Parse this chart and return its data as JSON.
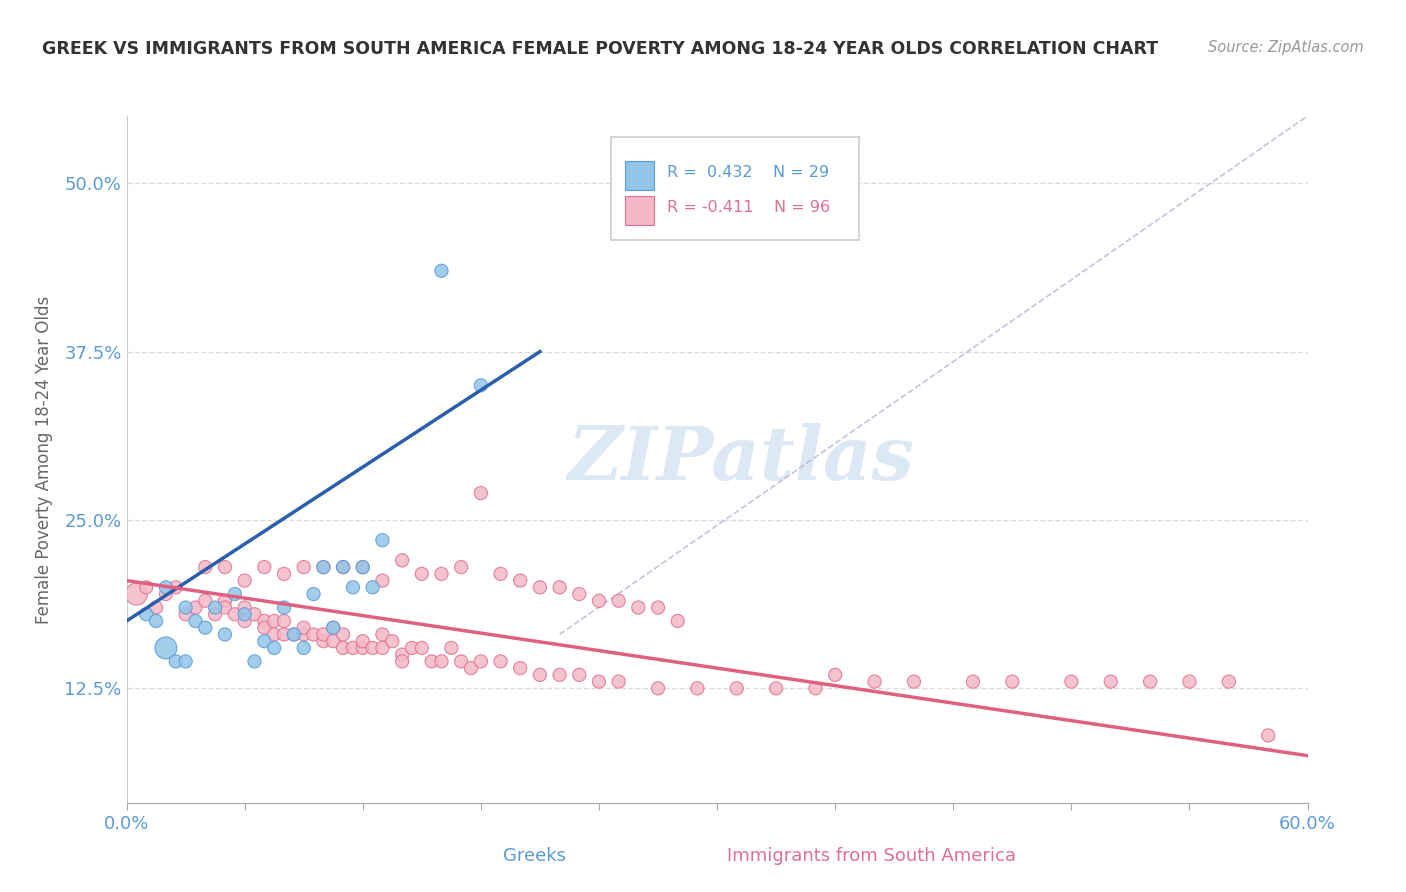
{
  "title": "GREEK VS IMMIGRANTS FROM SOUTH AMERICA FEMALE POVERTY AMONG 18-24 YEAR OLDS CORRELATION CHART",
  "source": "Source: ZipAtlas.com",
  "ylabel": "Female Poverty Among 18-24 Year Olds",
  "ytick_labels": [
    "12.5%",
    "25.0%",
    "37.5%",
    "50.0%"
  ],
  "ytick_values": [
    0.125,
    0.25,
    0.375,
    0.5
  ],
  "xlim": [
    0.0,
    0.6
  ],
  "ylim": [
    0.04,
    0.55
  ],
  "greek_R": 0.432,
  "greek_N": 29,
  "sa_R": -0.411,
  "sa_N": 96,
  "greek_color": "#92c5e8",
  "greek_edge": "#5b9bd5",
  "sa_color": "#f4b8c8",
  "sa_edge": "#e07090",
  "greek_line_color": "#2b5fad",
  "sa_line_color": "#e06080",
  "diag_color": "#aaaacc",
  "title_color": "#333333",
  "source_color": "#999999",
  "axis_label_color": "#666666",
  "tick_color": "#5b9bd5",
  "grid_color": "#dddddd",
  "watermark_color": "#dde8f5",
  "legend_border_color": "#cccccc",
  "legend_box_color": "white",
  "greek_label_color": "#5b9bd5",
  "sa_label_color": "#e07090",
  "greek_x": [
    0.02,
    0.03,
    0.035,
    0.04,
    0.045,
    0.05,
    0.055,
    0.06,
    0.065,
    0.07,
    0.075,
    0.08,
    0.085,
    0.09,
    0.095,
    0.1,
    0.105,
    0.11,
    0.115,
    0.12,
    0.125,
    0.13,
    0.01,
    0.015,
    0.02,
    0.025,
    0.03,
    0.16,
    0.18
  ],
  "greek_y": [
    0.2,
    0.185,
    0.175,
    0.17,
    0.185,
    0.165,
    0.195,
    0.18,
    0.145,
    0.16,
    0.155,
    0.185,
    0.165,
    0.155,
    0.195,
    0.215,
    0.17,
    0.215,
    0.2,
    0.215,
    0.2,
    0.235,
    0.18,
    0.175,
    0.155,
    0.145,
    0.145,
    0.435,
    0.35
  ],
  "greek_sizes": [
    90,
    90,
    90,
    90,
    90,
    90,
    90,
    90,
    90,
    90,
    90,
    90,
    90,
    90,
    90,
    90,
    90,
    90,
    90,
    90,
    90,
    90,
    90,
    90,
    250,
    90,
    90,
    90,
    90
  ],
  "sa_x": [
    0.005,
    0.01,
    0.015,
    0.02,
    0.025,
    0.03,
    0.035,
    0.04,
    0.045,
    0.05,
    0.05,
    0.055,
    0.06,
    0.06,
    0.065,
    0.07,
    0.07,
    0.075,
    0.075,
    0.08,
    0.08,
    0.085,
    0.09,
    0.09,
    0.095,
    0.1,
    0.1,
    0.105,
    0.105,
    0.11,
    0.11,
    0.115,
    0.12,
    0.12,
    0.125,
    0.13,
    0.13,
    0.135,
    0.14,
    0.14,
    0.145,
    0.15,
    0.155,
    0.16,
    0.165,
    0.17,
    0.175,
    0.18,
    0.19,
    0.2,
    0.21,
    0.22,
    0.23,
    0.24,
    0.25,
    0.27,
    0.29,
    0.31,
    0.33,
    0.35,
    0.36,
    0.38,
    0.4,
    0.43,
    0.45,
    0.48,
    0.5,
    0.52,
    0.54,
    0.56,
    0.58,
    0.04,
    0.05,
    0.06,
    0.07,
    0.08,
    0.09,
    0.1,
    0.11,
    0.12,
    0.13,
    0.14,
    0.15,
    0.16,
    0.17,
    0.18,
    0.19,
    0.2,
    0.21,
    0.22,
    0.23,
    0.24,
    0.25,
    0.26,
    0.27,
    0.28
  ],
  "sa_y": [
    0.195,
    0.2,
    0.185,
    0.195,
    0.2,
    0.18,
    0.185,
    0.19,
    0.18,
    0.19,
    0.185,
    0.18,
    0.185,
    0.175,
    0.18,
    0.175,
    0.17,
    0.175,
    0.165,
    0.175,
    0.165,
    0.165,
    0.165,
    0.17,
    0.165,
    0.16,
    0.165,
    0.16,
    0.17,
    0.165,
    0.155,
    0.155,
    0.155,
    0.16,
    0.155,
    0.165,
    0.155,
    0.16,
    0.15,
    0.145,
    0.155,
    0.155,
    0.145,
    0.145,
    0.155,
    0.145,
    0.14,
    0.145,
    0.145,
    0.14,
    0.135,
    0.135,
    0.135,
    0.13,
    0.13,
    0.125,
    0.125,
    0.125,
    0.125,
    0.125,
    0.135,
    0.13,
    0.13,
    0.13,
    0.13,
    0.13,
    0.13,
    0.13,
    0.13,
    0.13,
    0.09,
    0.215,
    0.215,
    0.205,
    0.215,
    0.21,
    0.215,
    0.215,
    0.215,
    0.215,
    0.205,
    0.22,
    0.21,
    0.21,
    0.215,
    0.27,
    0.21,
    0.205,
    0.2,
    0.2,
    0.195,
    0.19,
    0.19,
    0.185,
    0.185,
    0.175
  ],
  "sa_sizes": [
    250,
    90,
    90,
    90,
    90,
    90,
    90,
    90,
    90,
    90,
    90,
    90,
    90,
    90,
    90,
    90,
    90,
    90,
    90,
    90,
    90,
    90,
    90,
    90,
    90,
    90,
    90,
    90,
    90,
    90,
    90,
    90,
    90,
    90,
    90,
    90,
    90,
    90,
    90,
    90,
    90,
    90,
    90,
    90,
    90,
    90,
    90,
    90,
    90,
    90,
    90,
    90,
    90,
    90,
    90,
    90,
    90,
    90,
    90,
    90,
    90,
    90,
    90,
    90,
    90,
    90,
    90,
    90,
    90,
    90,
    90,
    90,
    90,
    90,
    90,
    90,
    90,
    90,
    90,
    90,
    90,
    90,
    90,
    90,
    90,
    90,
    90,
    90,
    90,
    90,
    90,
    90,
    90,
    90,
    90,
    90
  ]
}
